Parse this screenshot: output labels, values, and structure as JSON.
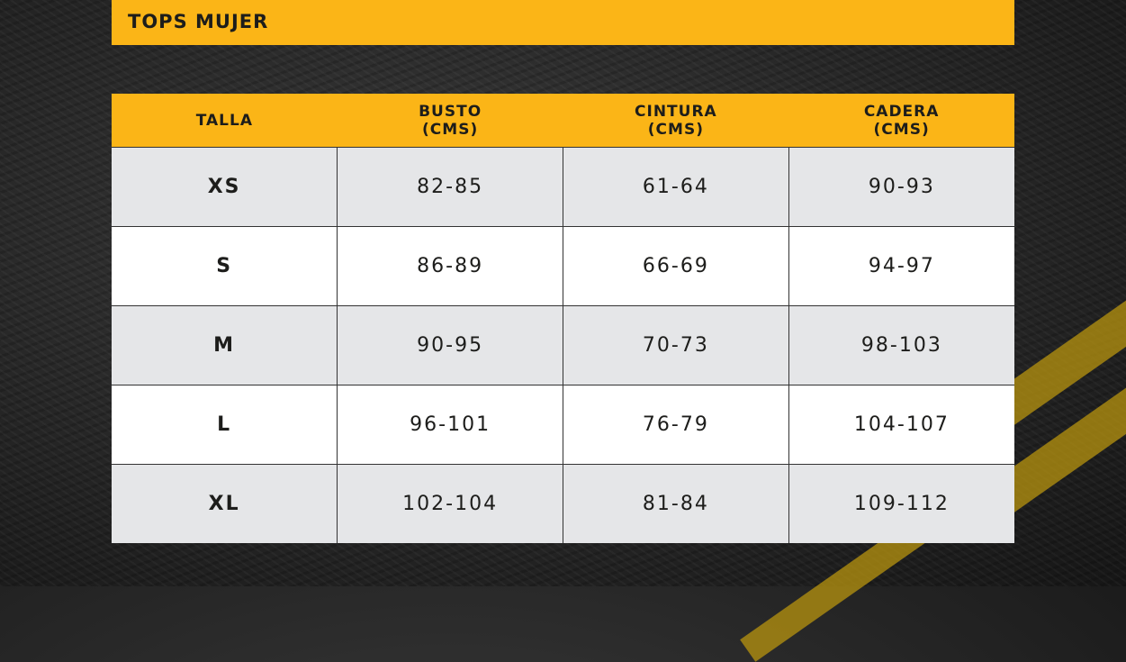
{
  "title": "TOPS MUJER",
  "headers": [
    {
      "line1": "TALLA",
      "line2": ""
    },
    {
      "line1": "BUSTO",
      "line2": "(CMS)"
    },
    {
      "line1": "CINTURA",
      "line2": "(CMS)"
    },
    {
      "line1": "CADERA",
      "line2": "(CMS)"
    }
  ],
  "rows": [
    [
      "XS",
      "82-85",
      "61-64",
      "90-93"
    ],
    [
      "S",
      "86-89",
      "66-69",
      "94-97"
    ],
    [
      "M",
      "90-95",
      "70-73",
      "98-103"
    ],
    [
      "L",
      "96-101",
      "76-79",
      "104-107"
    ],
    [
      "XL",
      "102-104",
      "81-84",
      "109-112"
    ]
  ],
  "colors": {
    "accent": "#fbb517",
    "row_alt": "#e5e6e8",
    "row": "#ffffff",
    "text": "#1d1d1b"
  }
}
